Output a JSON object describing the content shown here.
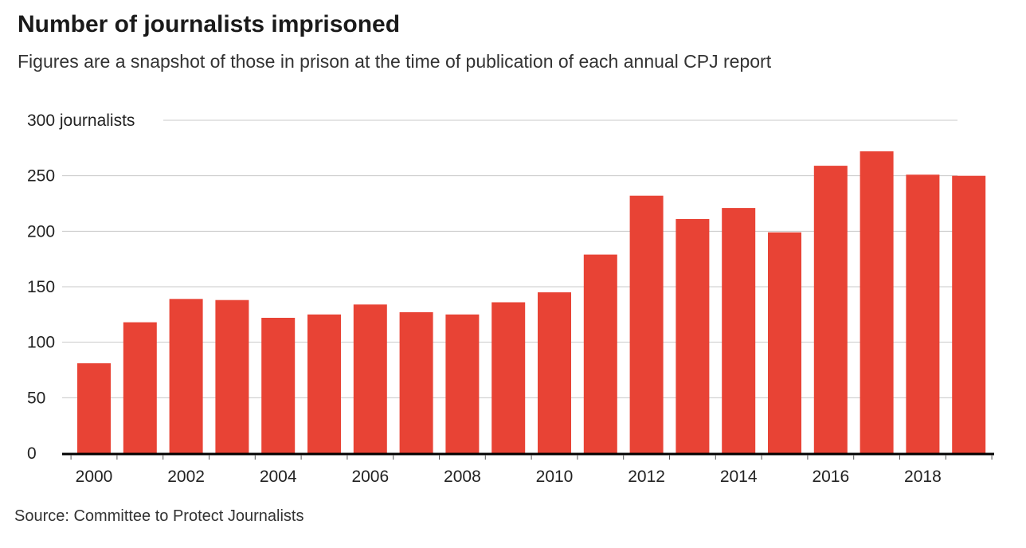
{
  "title": "Number of journalists imprisoned",
  "subtitle": "Figures are a snapshot of those in prison at the time of publication of each annual CPJ report",
  "source": "Source: Committee to Protect Journalists",
  "colors": {
    "bar": "#e84335",
    "grid": "#c8c8c8",
    "axis": "#000000"
  },
  "chart_data": {
    "type": "bar",
    "categories": [
      "2000",
      "2001",
      "2002",
      "2003",
      "2004",
      "2005",
      "2006",
      "2007",
      "2008",
      "2009",
      "2010",
      "2011",
      "2012",
      "2013",
      "2014",
      "2015",
      "2016",
      "2017",
      "2018",
      "2019"
    ],
    "values": [
      81,
      118,
      139,
      138,
      122,
      125,
      134,
      127,
      125,
      136,
      145,
      179,
      232,
      211,
      221,
      199,
      259,
      272,
      251,
      250
    ],
    "ylim": [
      0,
      300
    ],
    "yticks": [
      0,
      50,
      100,
      150,
      200,
      250,
      300
    ],
    "ytick_labels": [
      "0",
      "50",
      "100",
      "150",
      "200",
      "250",
      "300 journalists"
    ],
    "xtick_labels": [
      "2000",
      "2002",
      "2004",
      "2006",
      "2008",
      "2010",
      "2012",
      "2014",
      "2016",
      "2018"
    ],
    "grid": true,
    "legend": "none"
  }
}
